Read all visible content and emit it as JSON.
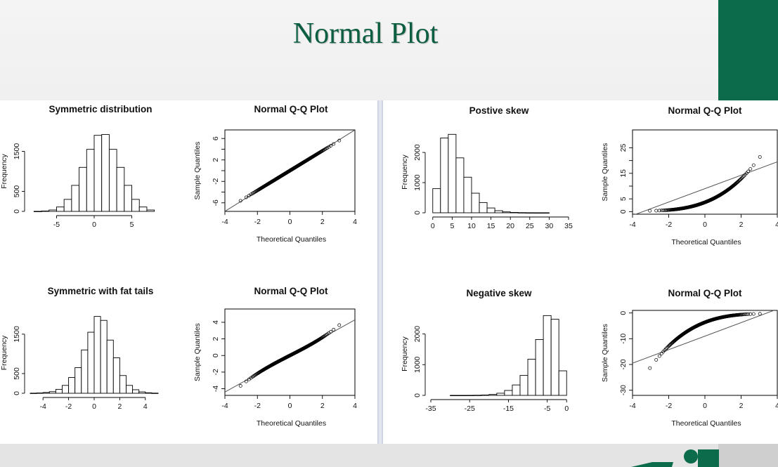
{
  "slide": {
    "title": "Normal Plot",
    "accent_color": "#0b6b4a"
  },
  "chart_data": [
    {
      "type": "bar",
      "title": "Symmetric distribution",
      "xlabel": "",
      "ylabel": "Frequency",
      "bin_edges": [
        -8,
        -7,
        -6,
        -5,
        -4,
        -3,
        -2,
        -1,
        0,
        1,
        2,
        3,
        4,
        5,
        6,
        7,
        8
      ],
      "values": [
        2,
        10,
        35,
        110,
        300,
        650,
        1100,
        1550,
        1900,
        1920,
        1550,
        1100,
        650,
        300,
        110,
        35,
        10
      ],
      "xticks": [
        -5,
        0,
        5
      ],
      "yticks": [
        0,
        500,
        1500
      ],
      "xlim": [
        -8.5,
        8.5
      ],
      "ylim": [
        0,
        2000
      ]
    },
    {
      "type": "scatter",
      "title": "Normal Q-Q Plot",
      "xlabel": "Theoretical Quantiles",
      "ylabel": "Sample Quantiles",
      "shape": "linear",
      "x_range": [
        -3.8,
        3.8
      ],
      "y_range": [
        -7.0,
        7.2
      ],
      "reference_line": [
        [
          -4,
          -7.6
        ],
        [
          4,
          7.6
        ]
      ],
      "xticks": [
        -4,
        -2,
        0,
        2,
        4
      ],
      "yticks": [
        -6,
        -2,
        2,
        6
      ],
      "yticks_minor": [
        -4,
        0,
        4
      ],
      "xlim": [
        -4,
        4
      ],
      "ylim": [
        -7.6,
        7.6
      ]
    },
    {
      "type": "bar",
      "title": "Postive skew",
      "xlabel": "",
      "ylabel": "Frequency",
      "bin_edges": [
        0,
        2,
        4,
        6,
        8,
        10,
        12,
        14,
        16,
        18,
        20,
        22,
        24,
        26,
        28,
        30,
        32,
        34
      ],
      "values": [
        800,
        2480,
        2600,
        1820,
        1180,
        650,
        340,
        160,
        70,
        30,
        12,
        5,
        2,
        1,
        1,
        0,
        0
      ],
      "xticks": [
        0,
        5,
        10,
        15,
        20,
        25,
        30,
        35
      ],
      "yticks": [
        0,
        1000,
        2000
      ],
      "xlim": [
        -0.5,
        35
      ],
      "ylim": [
        0,
        2700
      ]
    },
    {
      "type": "scatter",
      "title": "Normal Q-Q Plot",
      "xlabel": "Theoretical Quantiles",
      "ylabel": "Sample Quantiles",
      "shape": "convex",
      "x_range": [
        -3.9,
        3.9
      ],
      "y_range": [
        0.3,
        31
      ],
      "reference_line": [
        [
          -4,
          -1.5
        ],
        [
          4,
          19.5
        ]
      ],
      "xticks": [
        -4,
        -2,
        0,
        2,
        4
      ],
      "yticks": [
        0,
        5,
        15,
        25
      ],
      "yticks_minor": [
        10,
        20
      ],
      "xlim": [
        -4,
        4
      ],
      "ylim": [
        -1,
        32
      ]
    },
    {
      "type": "bar",
      "title": "Symmetric with fat tails",
      "xlabel": "",
      "ylabel": "Frequency",
      "bin_edges": [
        -5,
        -4.5,
        -4,
        -3.5,
        -3,
        -2.5,
        -2,
        -1.5,
        -1,
        -0.5,
        0,
        0.5,
        1,
        1.5,
        2,
        2.5,
        3,
        3.5,
        4,
        4.5,
        5
      ],
      "values": [
        3,
        8,
        20,
        40,
        100,
        200,
        400,
        650,
        1100,
        1550,
        1950,
        1850,
        1350,
        900,
        450,
        200,
        90,
        35,
        12,
        4
      ],
      "xticks": [
        -4,
        -2,
        0,
        2,
        4
      ],
      "yticks": [
        0,
        500,
        1500
      ],
      "xlim": [
        -5,
        5
      ],
      "ylim": [
        0,
        2050
      ]
    },
    {
      "type": "scatter",
      "title": "Normal Q-Q Plot",
      "xlabel": "Theoretical Quantiles",
      "ylabel": "Sample Quantiles",
      "shape": "fat-tailed",
      "x_range": [
        -3.8,
        3.9
      ],
      "y_range": [
        -4.4,
        5.4
      ],
      "reference_line": [
        [
          -4,
          -4.4
        ],
        [
          4,
          4.3
        ]
      ],
      "xticks": [
        -4,
        -2,
        0,
        2,
        4
      ],
      "yticks": [
        -4,
        -2,
        0,
        2,
        4
      ],
      "xlim": [
        -4,
        4
      ],
      "ylim": [
        -4.8,
        5.6
      ]
    },
    {
      "type": "bar",
      "title": "Negative skew",
      "xlabel": "",
      "ylabel": "Frequency",
      "bin_edges": [
        -34,
        -32,
        -30,
        -28,
        -26,
        -24,
        -22,
        -20,
        -18,
        -16,
        -14,
        -12,
        -10,
        -8,
        -6,
        -4,
        -2,
        0
      ],
      "values": [
        0,
        0,
        1,
        1,
        2,
        5,
        12,
        30,
        70,
        160,
        340,
        650,
        1180,
        1820,
        2600,
        2480,
        800
      ],
      "xticks": [
        -35,
        -25,
        -15,
        -5,
        0
      ],
      "yticks": [
        0,
        1000,
        2000
      ],
      "xlim": [
        -35,
        0.5
      ],
      "ylim": [
        0,
        2700
      ]
    },
    {
      "type": "scatter",
      "title": "Normal Q-Q Plot",
      "xlabel": "Theoretical Quantiles",
      "ylabel": "Sample Quantiles",
      "shape": "concave",
      "x_range": [
        -3.9,
        3.9
      ],
      "y_range": [
        -31,
        -0.3
      ],
      "reference_line": [
        [
          -4,
          -19.5
        ],
        [
          4,
          1.5
        ]
      ],
      "xticks": [
        -4,
        -2,
        0,
        2,
        4
      ],
      "yticks": [
        0,
        -10,
        -20,
        -30
      ],
      "xlim": [
        -4,
        4
      ],
      "ylim": [
        -32,
        1
      ]
    }
  ]
}
